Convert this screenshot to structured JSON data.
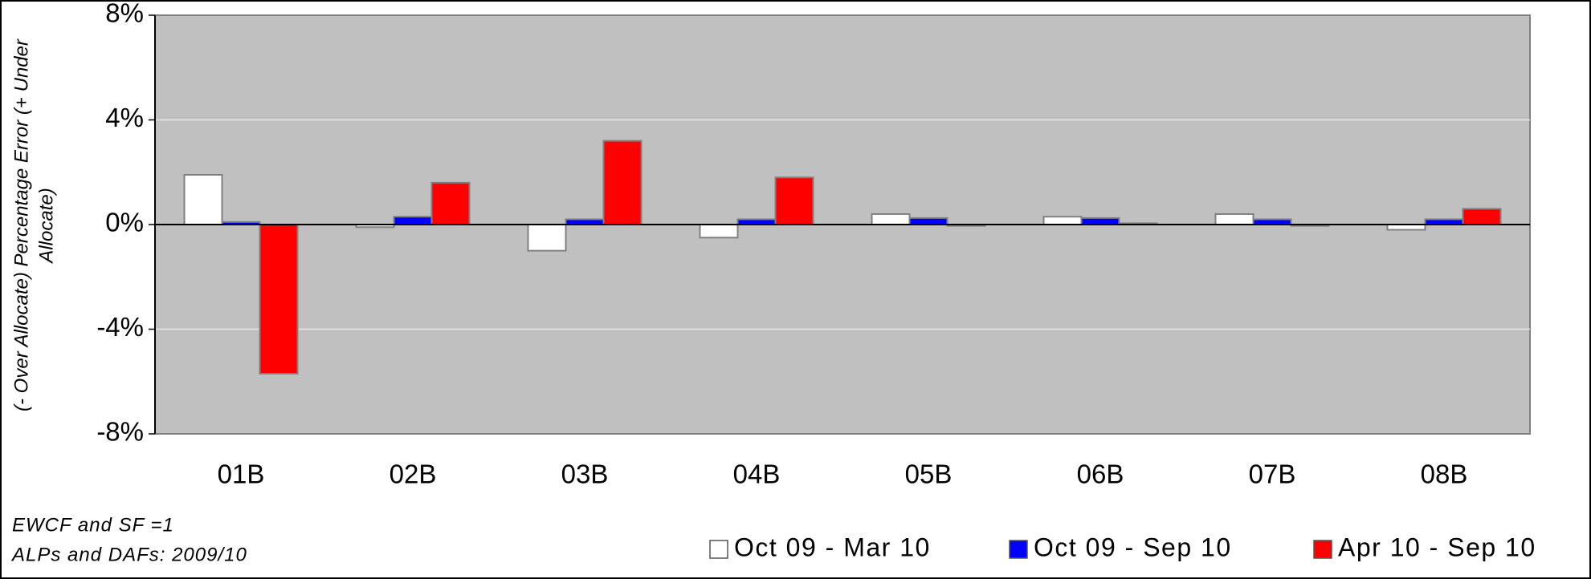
{
  "chart_data": {
    "type": "bar",
    "ylabel": [
      "(- Over Allocate) Percentage Error (+ Under",
      "Allocate)"
    ],
    "notes": [
      "EWCF and SF =1",
      "ALPs and DAFs: 2009/10"
    ],
    "categories": [
      "01B",
      "02B",
      "03B",
      "04B",
      "05B",
      "06B",
      "07B",
      "08B"
    ],
    "series": [
      {
        "name": "Oct 09 - Mar 10",
        "color": "#ffffff",
        "values": [
          1.9,
          -0.1,
          -1.0,
          -0.5,
          0.4,
          0.3,
          0.4,
          -0.2
        ]
      },
      {
        "name": "Oct 09 - Sep 10",
        "color": "#0000ff",
        "values": [
          0.1,
          0.3,
          0.2,
          0.2,
          0.25,
          0.25,
          0.2,
          0.2
        ]
      },
      {
        "name": "Apr 10 - Sep 10",
        "color": "#ff0000",
        "values": [
          -5.7,
          1.6,
          3.2,
          1.8,
          -0.05,
          0.05,
          -0.05,
          0.6
        ]
      }
    ],
    "ylim": [
      -8,
      8
    ],
    "yticks": [
      {
        "value": -8,
        "label": "-8%"
      },
      {
        "value": -4,
        "label": "-4%"
      },
      {
        "value": 0,
        "label": "0%"
      },
      {
        "value": 4,
        "label": "4%"
      },
      {
        "value": 8,
        "label": "8%"
      }
    ],
    "grid": true
  }
}
